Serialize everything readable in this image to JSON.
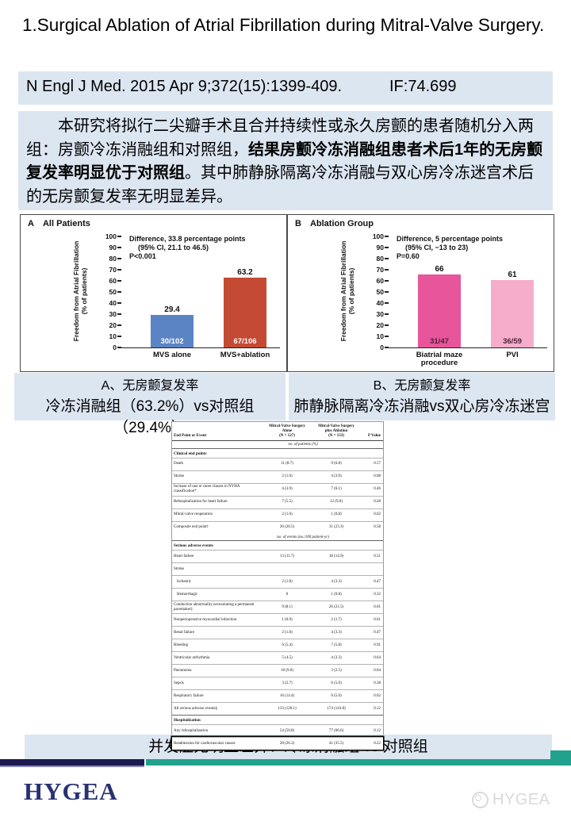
{
  "title": "1.Surgical Ablation of Atrial Fibrillation during Mitral-Valve Surgery.",
  "citation": {
    "text": "N Engl J Med. 2015 Apr 9;372(15):1399-409.",
    "impact_factor": "IF:74.699"
  },
  "summary": {
    "part1": "　　本研究将拟行二尖瓣手术且合并持续性或永久房颤的患者随机分入两组：房颤冷冻消融组和对照组，",
    "part2_bold": "结果房颤冷冻消融组患者术后1年的无房颤复发率明显优于对照组",
    "part3": "。其中肺静脉隔离冷冻消融与双心房冷冻迷宫术后的无房颤复发率无明显差异。"
  },
  "chart_data": [
    {
      "type": "bar",
      "panel_label": "A",
      "panel_title": "All Patients",
      "ylabel": "Freedom from Atrial Fibrillation (% of patients)",
      "ylabel_lines": [
        "Freedom from Atrial Fibrillation",
        "(% of patients)"
      ],
      "ylim": [
        0,
        100
      ],
      "ytick_step": 10,
      "annotation": [
        "Difference, 33.8 percentage points",
        "(95% CI, 21.1 to 46.5)",
        "P<0.001"
      ],
      "categories": [
        "MVS alone",
        "MVS+ablation"
      ],
      "values": [
        29.4,
        63.2
      ],
      "bar_sublabels": [
        "30/102",
        "67/106"
      ],
      "bar_colors": [
        "#5b84c4",
        "#c44a33"
      ],
      "sublabel_colors": [
        "#ffffff",
        "#ffffff"
      ]
    },
    {
      "type": "bar",
      "panel_label": "B",
      "panel_title": "Ablation Group",
      "ylabel": "Freedom from Atrial Fibrillation (% of patients)",
      "ylabel_lines": [
        "Freedom from Atrial Fibrillation",
        "(% of patients)"
      ],
      "ylim": [
        0,
        100
      ],
      "ytick_step": 10,
      "annotation": [
        "Difference, 5 percentage points",
        "(95% CI, −13 to 23)",
        "P=0.60"
      ],
      "categories": [
        "Biatrial maze\nprocedure",
        "PVI"
      ],
      "values": [
        66,
        61
      ],
      "bar_sublabels": [
        "31/47",
        "36/59"
      ],
      "bar_colors": [
        "#e7559a",
        "#f6adcb"
      ],
      "sublabel_colors": [
        "#4d2236",
        "#4d2236"
      ]
    }
  ],
  "figure_captions": {
    "left_line1": "A、无房颤复发率",
    "left_line2": "冷冻消融组（63.2%）vs对照组（29.4%）",
    "right_line1": "B、无房颤复发率",
    "right_line2": "肺静脉隔离冷冻消融vs双心房冷冻迷宫"
  },
  "table": {
    "col_headers": [
      "End Point or Event",
      "Mitral-Valve Surgery\nAlone\n(N = 127)",
      "Mitral-Valve Surgery\nplus Ablation\n(N = 133)",
      "P Value"
    ],
    "unit_patients": "no. of patients (%)",
    "rows": [
      {
        "type": "section",
        "label": "Clinical end points"
      },
      {
        "type": "row",
        "label": "Death",
        "c1": "11 (8.7)",
        "c2": "9 (6.8)",
        "p": "0.57"
      },
      {
        "type": "row",
        "label": "Stroke",
        "c1": "2 (1.6)",
        "c2": "4 (3.0)",
        "p": "0.68"
      },
      {
        "type": "row",
        "label": "Increase of one or more classes in NYHA classification*",
        "c1": "4 (3.9)",
        "c2": "7 (6.1)",
        "p": "0.46"
      },
      {
        "type": "row",
        "label": "Rehospitalization for heart failure",
        "c1": "7 (5.5)",
        "c2": "12 (9.0)",
        "p": "0.28"
      },
      {
        "type": "row",
        "label": "Mitral-valve reoperation",
        "c1": "2 (1.6)",
        "c2": "1 (0.8)",
        "p": "0.62"
      },
      {
        "type": "row",
        "label": "Composite end point†",
        "c1": "26 (20.5)",
        "c2": "31 (23.3)",
        "p": "0.58"
      },
      {
        "type": "unit",
        "label": "no. of events (no./100 patient-yr)"
      },
      {
        "type": "section",
        "label": "Serious adverse events"
      },
      {
        "type": "row",
        "label": "Heart failure",
        "c1": "13 (11.7)",
        "c2": "18 (14.9)",
        "p": "0.51"
      },
      {
        "type": "row",
        "label": "Stroke",
        "c1": "",
        "c2": "",
        "p": ""
      },
      {
        "type": "row",
        "indent": true,
        "label": "Ischemic",
        "c1": "2 (1.8)",
        "c2": "4 (3.3)",
        "p": "0.47"
      },
      {
        "type": "row",
        "indent": true,
        "label": "Hemorrhagic",
        "c1": "0",
        "c2": "1 (0.8)",
        "p": "0.32"
      },
      {
        "type": "row",
        "label": "Conduction abnormality necessitating a permanent pacemaker‡",
        "c1": "9 (8.1)",
        "c2": "26 (21.5)",
        "p": "0.01"
      },
      {
        "type": "row",
        "label": "Nonperioperative myocardial infarction",
        "c1": "1 (0.9)",
        "c2": "2 (1.7)",
        "p": "0.61"
      },
      {
        "type": "row",
        "label": "Renal failure",
        "c1": "2 (1.8)",
        "c2": "4 (3.3)",
        "p": "0.47"
      },
      {
        "type": "row",
        "label": "Bleeding",
        "c1": "6 (5.4)",
        "c2": "7 (5.8)",
        "p": "0.91"
      },
      {
        "type": "row",
        "label": "Ventricular arrhythmia",
        "c1": "5 (4.5)",
        "c2": "4 (3.3)",
        "p": "0.64"
      },
      {
        "type": "row",
        "label": "Pneumonia",
        "c1": "10 (9.0)",
        "c2": "3 (2.5)",
        "p": "0.04"
      },
      {
        "type": "row",
        "label": "Sepsis",
        "c1": "3 (2.7)",
        "c2": "6 (5.0)",
        "p": "0.38"
      },
      {
        "type": "row",
        "label": "Respiratory failure",
        "c1": "16 (14.4)",
        "c2": "6 (5.0)",
        "p": "0.02"
      },
      {
        "type": "row",
        "label": "All serious adverse events§",
        "c1": "133 (120.1)",
        "c2": "174 (143.8)",
        "p": "0.12"
      },
      {
        "type": "section",
        "label": "Hospitalization"
      },
      {
        "type": "row",
        "label": "Any rehospitalization",
        "c1": "54 (50.8)",
        "c2": "77 (66.6)",
        "p": "0.12"
      },
      {
        "type": "row",
        "highlight": true,
        "label": "Readmission for cardiovascular causes",
        "c1": "28 (26.3)",
        "c2": "41 (35.5)",
        "p": "0.22"
      }
    ]
  },
  "bottom_caption": "并发症无明显差异：冷冻消融组 vs 对照组",
  "footer": {
    "logo": "HYGEA",
    "watermark": "HYGEA"
  },
  "colors": {
    "highlight_box": "#dce6f1",
    "bar_navy": "#1c1a4e",
    "bar_teal": "#21a18e",
    "logo_navy": "#283173",
    "chart_blue": "#5b84c4",
    "chart_red": "#c44a33",
    "chart_pink": "#e7559a",
    "chart_light_pink": "#f6adcb"
  }
}
